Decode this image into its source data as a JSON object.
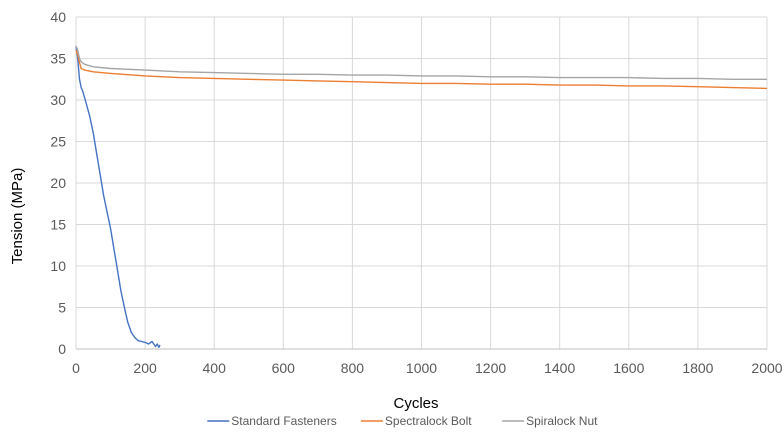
{
  "chart_data": {
    "type": "line",
    "title": "",
    "xlabel": "Cycles",
    "ylabel": "Tension  (MPa)",
    "xlim": [
      0,
      2000
    ],
    "ylim": [
      0,
      40
    ],
    "x_ticks": [
      0,
      200,
      400,
      600,
      800,
      1000,
      1200,
      1400,
      1600,
      1800,
      2000
    ],
    "y_ticks": [
      0,
      5,
      10,
      15,
      20,
      25,
      30,
      35,
      40
    ],
    "grid": true,
    "legend_position": "bottom",
    "series": [
      {
        "name": "Standard Fasteners",
        "color": "#4472C4",
        "x": [
          0,
          5,
          10,
          15,
          20,
          30,
          40,
          50,
          60,
          70,
          80,
          90,
          100,
          110,
          120,
          130,
          140,
          150,
          160,
          170,
          180,
          190,
          200,
          210,
          220,
          230,
          235,
          240,
          243
        ],
        "y": [
          36.5,
          35.0,
          32.5,
          31.5,
          31.0,
          29.5,
          28.0,
          26.0,
          23.5,
          21.0,
          18.5,
          16.5,
          14.5,
          12.0,
          9.5,
          7.0,
          5.0,
          3.2,
          2.0,
          1.4,
          1.0,
          0.9,
          0.8,
          0.6,
          0.9,
          0.3,
          0.6,
          0.2,
          0.5
        ]
      },
      {
        "name": "Spectralock Bolt",
        "color": "#ED7D31",
        "x": [
          0,
          5,
          10,
          15,
          25,
          50,
          100,
          200,
          300,
          400,
          500,
          600,
          700,
          800,
          900,
          1000,
          1100,
          1200,
          1300,
          1400,
          1500,
          1600,
          1700,
          1800,
          1900,
          2000
        ],
        "y": [
          36.0,
          35.5,
          34.5,
          33.8,
          33.6,
          33.4,
          33.2,
          32.9,
          32.7,
          32.6,
          32.5,
          32.4,
          32.3,
          32.2,
          32.1,
          32.0,
          32.0,
          31.9,
          31.9,
          31.8,
          31.8,
          31.7,
          31.7,
          31.6,
          31.5,
          31.4
        ]
      },
      {
        "name": "Spiralock Nut",
        "color": "#A5A5A5",
        "x": [
          0,
          5,
          10,
          15,
          25,
          50,
          100,
          200,
          300,
          400,
          500,
          600,
          700,
          800,
          900,
          1000,
          1100,
          1200,
          1300,
          1400,
          1500,
          1600,
          1700,
          1800,
          1900,
          2000
        ],
        "y": [
          36.5,
          36.0,
          35.0,
          34.6,
          34.3,
          34.0,
          33.8,
          33.6,
          33.4,
          33.3,
          33.2,
          33.1,
          33.1,
          33.0,
          33.0,
          32.9,
          32.9,
          32.8,
          32.8,
          32.7,
          32.7,
          32.7,
          32.6,
          32.6,
          32.5,
          32.5
        ]
      }
    ]
  }
}
